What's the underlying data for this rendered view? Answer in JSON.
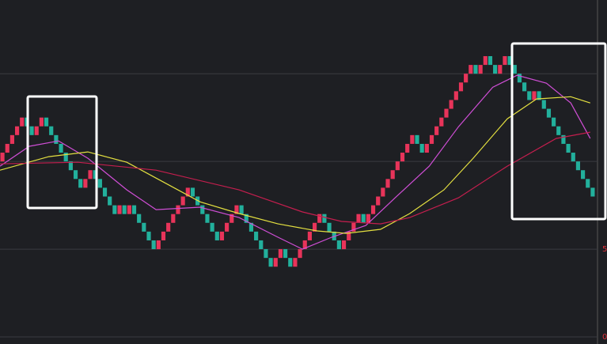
{
  "chart_data": {
    "type": "renko",
    "brick_size": 0.5,
    "values": [
      10.5,
      11,
      11.5,
      12,
      12.5,
      12,
      11.5,
      12,
      12.5,
      12,
      11.5,
      11,
      10.5,
      10,
      9.5,
      9,
      8.5,
      9,
      9.5,
      9,
      8.5,
      8,
      7.5,
      7,
      7.5,
      7,
      7.5,
      7,
      6.5,
      6,
      5.5,
      5,
      5.5,
      6,
      6.5,
      7,
      7.5,
      8,
      8.5,
      8,
      7.5,
      7,
      6.5,
      6,
      5.5,
      6,
      6.5,
      7,
      7.5,
      7,
      6.5,
      6,
      5.5,
      5,
      4.5,
      4,
      4.5,
      5,
      4.5,
      4,
      4.5,
      5,
      5.5,
      6,
      6.5,
      7,
      6.5,
      6,
      5.5,
      5,
      5.5,
      6,
      6.5,
      7,
      6.5,
      7,
      7.5,
      8,
      8.5,
      9,
      9.5,
      10,
      10.5,
      11,
      11.5,
      11,
      10.5,
      11,
      11.5,
      12,
      12.5,
      13,
      13.5,
      14,
      14.5,
      15,
      15.5,
      15,
      15.5,
      16,
      15.5,
      15,
      15.5,
      16,
      15.5,
      15,
      14.5,
      14,
      13.5,
      14,
      13.5,
      13,
      12.5,
      12,
      11.5,
      11,
      10.5,
      10,
      9.5,
      9,
      8.5,
      8
    ],
    "up_color": "#e8345a",
    "down_color": "#22b09c",
    "xlim": [
      0,
      122
    ],
    "ylim": [
      0,
      19.2
    ],
    "yticks": [
      0,
      5
    ],
    "grid_values": [
      10,
      15
    ],
    "grid": true,
    "series": [
      {
        "color": "#d04ed6",
        "x": [
          0,
          6,
          12,
          18,
          26,
          32,
          41,
          49,
          57,
          62,
          68,
          75,
          81,
          88,
          94,
          101,
          106,
          112,
          117,
          121
        ],
        "values": [
          9.73,
          10.86,
          11.17,
          10.18,
          8.38,
          7.25,
          7.39,
          6.8,
          5.68,
          5.0,
          5.68,
          6.35,
          7.93,
          9.73,
          11.98,
          14.23,
          14.91,
          14.46,
          13.33,
          11.31
        ]
      },
      {
        "color": "#e4e040",
        "x": [
          0,
          10,
          18,
          26,
          32,
          41,
          49,
          57,
          65,
          71,
          78,
          84,
          91,
          97,
          104,
          110,
          117,
          121
        ],
        "values": [
          9.5,
          10.27,
          10.54,
          9.95,
          9.05,
          7.7,
          7.03,
          6.44,
          6.04,
          5.9,
          6.13,
          7.03,
          8.38,
          10.18,
          12.43,
          13.56,
          13.69,
          13.33
        ]
      },
      {
        "color": "#c41e4e",
        "x": [
          0,
          16,
          32,
          49,
          62,
          70,
          78,
          84,
          94,
          104,
          114,
          121
        ],
        "values": [
          9.86,
          9.95,
          9.5,
          8.38,
          7.12,
          6.58,
          6.44,
          6.8,
          7.93,
          9.73,
          11.31,
          11.67
        ]
      }
    ]
  }
}
